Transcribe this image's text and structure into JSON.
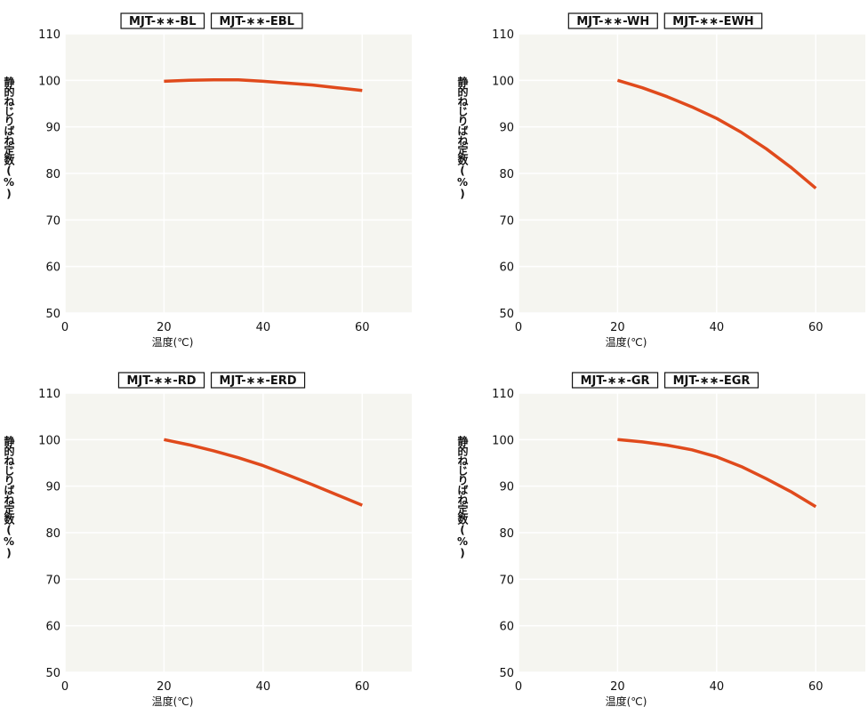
{
  "chart_data": [
    {
      "type": "line",
      "legend_labels": [
        "MJT-∗∗-BL",
        "MJT-∗∗-EBL"
      ],
      "xlabel": "温度(℃)",
      "ylabel": "静的ねじりばね定数(%)",
      "xlim": [
        0,
        70
      ],
      "ylim": [
        50,
        110
      ],
      "xticks": [
        0,
        20,
        40,
        60
      ],
      "yticks": [
        50,
        60,
        70,
        80,
        90,
        100,
        110
      ],
      "grid": true,
      "line_color": "#e04a1c",
      "plot_bg": "#f5f5f0",
      "series": [
        {
          "x": [
            20,
            25,
            30,
            35,
            40,
            45,
            50,
            55,
            60
          ],
          "y": [
            99.8,
            100.0,
            100.1,
            100.1,
            99.8,
            99.4,
            99.0,
            98.4,
            97.8
          ]
        }
      ]
    },
    {
      "type": "line",
      "legend_labels": [
        "MJT-∗∗-WH",
        "MJT-∗∗-EWH"
      ],
      "xlabel": "温度(℃)",
      "ylabel": "静的ねじりばね定数(%)",
      "xlim": [
        0,
        70
      ],
      "ylim": [
        50,
        110
      ],
      "xticks": [
        0,
        20,
        40,
        60
      ],
      "yticks": [
        50,
        60,
        70,
        80,
        90,
        100,
        110
      ],
      "grid": true,
      "line_color": "#e04a1c",
      "plot_bg": "#f5f5f0",
      "series": [
        {
          "x": [
            20,
            25,
            30,
            35,
            40,
            45,
            50,
            55,
            60
          ],
          "y": [
            100.0,
            98.4,
            96.5,
            94.3,
            91.8,
            88.8,
            85.3,
            81.3,
            76.8
          ]
        }
      ]
    },
    {
      "type": "line",
      "legend_labels": [
        "MJT-∗∗-RD",
        "MJT-∗∗-ERD"
      ],
      "xlabel": "温度(℃)",
      "ylabel": "静的ねじりばね定数(%)",
      "xlim": [
        0,
        70
      ],
      "ylim": [
        50,
        110
      ],
      "xticks": [
        0,
        20,
        40,
        60
      ],
      "yticks": [
        50,
        60,
        70,
        80,
        90,
        100,
        110
      ],
      "grid": true,
      "line_color": "#e04a1c",
      "plot_bg": "#f5f5f0",
      "series": [
        {
          "x": [
            20,
            25,
            30,
            35,
            40,
            45,
            50,
            55,
            60
          ],
          "y": [
            100.0,
            98.9,
            97.6,
            96.1,
            94.4,
            92.4,
            90.3,
            88.1,
            85.9
          ]
        }
      ]
    },
    {
      "type": "line",
      "legend_labels": [
        "MJT-∗∗-GR",
        "MJT-∗∗-EGR"
      ],
      "xlabel": "温度(℃)",
      "ylabel": "静的ねじりばね定数(%)",
      "xlim": [
        0,
        70
      ],
      "ylim": [
        50,
        110
      ],
      "xticks": [
        0,
        20,
        40,
        60
      ],
      "yticks": [
        50,
        60,
        70,
        80,
        90,
        100,
        110
      ],
      "grid": true,
      "line_color": "#e04a1c",
      "plot_bg": "#f5f5f0",
      "series": [
        {
          "x": [
            20,
            25,
            30,
            35,
            40,
            45,
            50,
            55,
            60
          ],
          "y": [
            100.0,
            99.5,
            98.8,
            97.8,
            96.3,
            94.2,
            91.6,
            88.8,
            85.6
          ]
        }
      ]
    }
  ]
}
